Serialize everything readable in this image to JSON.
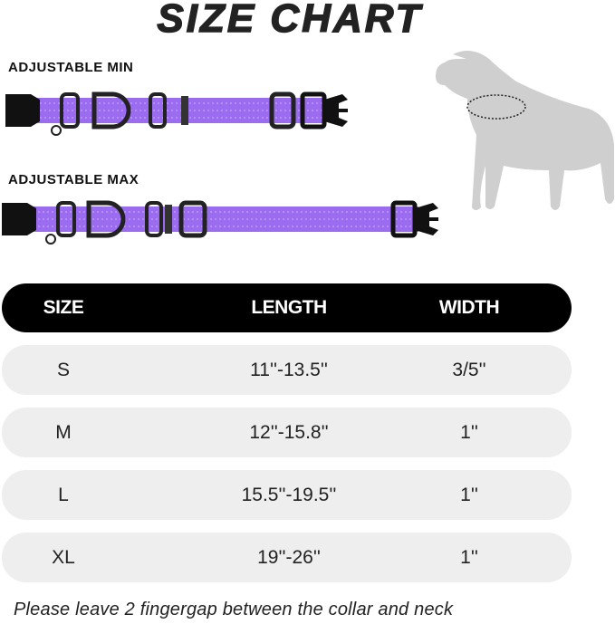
{
  "title": "SIZE CHART",
  "labels": {
    "min": "ADJUSTABLE MIN",
    "max": "ADJUSTABLE MAX"
  },
  "colors": {
    "collar": "#9b6cf0",
    "header_bg": "#000000",
    "row_bg": "#eeeeee",
    "dog": "#cfcfcf"
  },
  "table": {
    "headers": [
      "SIZE",
      "LENGTH",
      "WIDTH"
    ],
    "rows": [
      [
        "S",
        "11''-13.5''",
        "3/5''"
      ],
      [
        "M",
        "12''-15.8''",
        "1''"
      ],
      [
        "L",
        "15.5''-19.5''",
        "1''"
      ],
      [
        "XL",
        "19''-26''",
        "1''"
      ]
    ]
  },
  "note": "Please leave 2 fingergap between the collar and neck"
}
